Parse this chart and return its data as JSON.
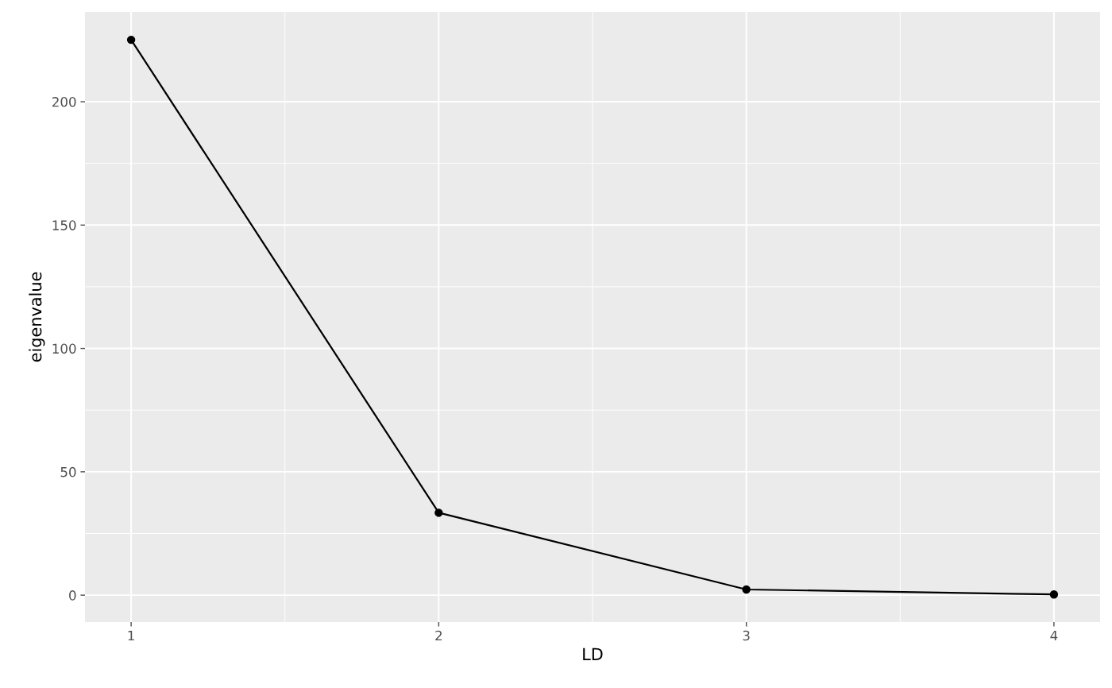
{
  "chart_data": {
    "type": "line",
    "xlabel": "LD",
    "ylabel": "eigenvalue",
    "x": [
      1,
      2,
      3,
      4
    ],
    "series": [
      {
        "color": "#000000",
        "values": [
          225.1,
          33.4,
          2.3,
          0.3
        ]
      }
    ],
    "xlim": [
      0.85,
      4.15
    ],
    "xticks": [
      1,
      2,
      3,
      4
    ],
    "ylim": [
      -10.9,
      236.4
    ],
    "yticks": [
      0,
      50,
      100,
      150,
      200
    ],
    "grid": true,
    "marker": "circle",
    "line_style": "solid"
  }
}
